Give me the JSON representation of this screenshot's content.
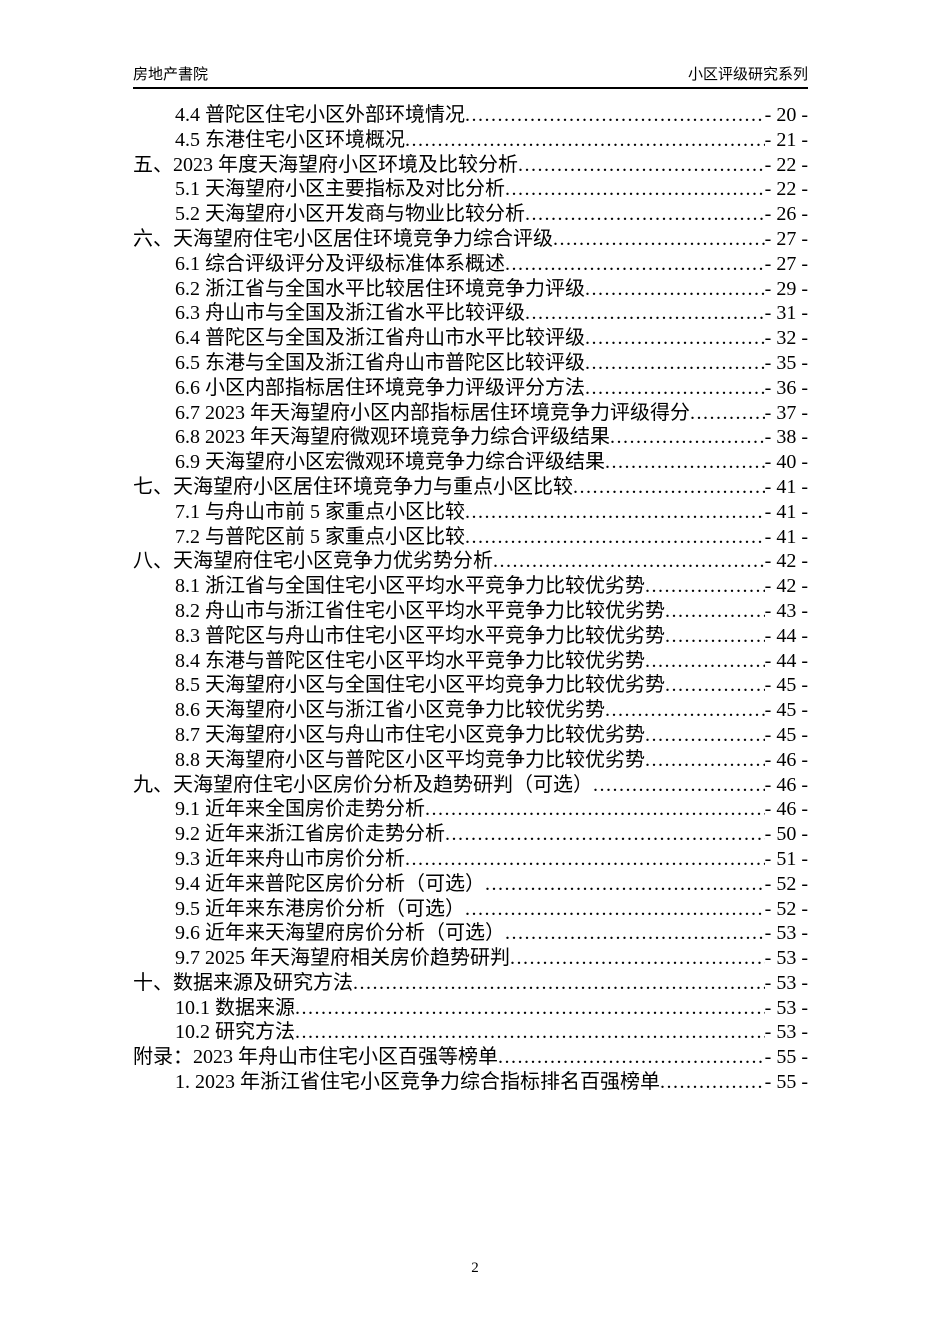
{
  "page": {
    "header": {
      "left_title": "房地产書院",
      "right_title": "小区评级研究系列"
    },
    "footer": {
      "page_number": "2"
    }
  },
  "toc": {
    "entries": [
      {
        "level": 2,
        "label": "4.4 普陀区住宅小区外部环境情况",
        "page": "- 20 -"
      },
      {
        "level": 2,
        "label": "4.5 东港住宅小区环境概况",
        "page": "- 21 -"
      },
      {
        "level": 1,
        "label": "五、2023 年度天海望府小区环境及比较分析",
        "page": "- 22 -"
      },
      {
        "level": 2,
        "label": "5.1 天海望府小区主要指标及对比分析",
        "page": "- 22 -"
      },
      {
        "level": 2,
        "label": "5.2 天海望府小区开发商与物业比较分析",
        "page": "- 26 -"
      },
      {
        "level": 1,
        "label": "六、天海望府住宅小区居住环境竞争力综合评级",
        "page": "- 27 -"
      },
      {
        "level": 2,
        "label": "6.1 综合评级评分及评级标准体系概述",
        "page": "- 27 -"
      },
      {
        "level": 2,
        "label": "6.2 浙江省与全国水平比较居住环境竞争力评级",
        "page": "- 29 -"
      },
      {
        "level": 2,
        "label": "6.3 舟山市与全国及浙江省水平比较评级",
        "page": "- 31 -"
      },
      {
        "level": 2,
        "label": "6.4 普陀区与全国及浙江省舟山市水平比较评级",
        "page": "- 32 -"
      },
      {
        "level": 2,
        "label": "6.5 东港与全国及浙江省舟山市普陀区比较评级",
        "page": "- 35 -"
      },
      {
        "level": 2,
        "label": "6.6 小区内部指标居住环境竞争力评级评分方法",
        "page": "- 36 -"
      },
      {
        "level": 2,
        "label": "6.7 2023 年天海望府小区内部指标居住环境竞争力评级得分",
        "page": "- 37 -"
      },
      {
        "level": 2,
        "label": "6.8 2023 年天海望府微观环境竞争力综合评级结果",
        "page": "- 38 -"
      },
      {
        "level": 2,
        "label": "6.9 天海望府小区宏微观环境竞争力综合评级结果",
        "page": "- 40 -"
      },
      {
        "level": 1,
        "label": "七、天海望府小区居住环境竞争力与重点小区比较",
        "page": "- 41 -"
      },
      {
        "level": 2,
        "label": "7.1 与舟山市前 5 家重点小区比较",
        "page": "- 41 -"
      },
      {
        "level": 2,
        "label": "7.2 与普陀区前 5 家重点小区比较",
        "page": "- 41 -"
      },
      {
        "level": 1,
        "label": "八、天海望府住宅小区竞争力优劣势分析",
        "page": "- 42 -"
      },
      {
        "level": 2,
        "label": "8.1 浙江省与全国住宅小区平均水平竞争力比较优劣势",
        "page": "- 42 -"
      },
      {
        "level": 2,
        "label": "8.2 舟山市与浙江省住宅小区平均水平竞争力比较优劣势",
        "page": "- 43 -"
      },
      {
        "level": 2,
        "label": "8.3 普陀区与舟山市住宅小区平均水平竞争力比较优劣势",
        "page": "- 44 -"
      },
      {
        "level": 2,
        "label": "8.4 东港与普陀区住宅小区平均水平竞争力比较优劣势",
        "page": "- 44 -"
      },
      {
        "level": 2,
        "label": "8.5 天海望府小区与全国住宅小区平均竞争力比较优劣势",
        "page": "- 45 -"
      },
      {
        "level": 2,
        "label": "8.6 天海望府小区与浙江省小区竞争力比较优劣势",
        "page": "- 45 -"
      },
      {
        "level": 2,
        "label": "8.7 天海望府小区与舟山市住宅小区竞争力比较优劣势",
        "page": "- 45 -"
      },
      {
        "level": 2,
        "label": "8.8 天海望府小区与普陀区小区平均竞争力比较优劣势",
        "page": "- 46 -"
      },
      {
        "level": 1,
        "label": "九、天海望府住宅小区房价分析及趋势研判（可选）",
        "page": "- 46 -"
      },
      {
        "level": 2,
        "label": "9.1 近年来全国房价走势分析",
        "page": "- 46 -"
      },
      {
        "level": 2,
        "label": "9.2 近年来浙江省房价走势分析",
        "page": "- 50 -"
      },
      {
        "level": 2,
        "label": "9.3 近年来舟山市房价分析",
        "page": "- 51 -"
      },
      {
        "level": 2,
        "label": "9.4 近年来普陀区房价分析（可选）",
        "page": "- 52 -"
      },
      {
        "level": 2,
        "label": "9.5 近年来东港房价分析（可选）",
        "page": "- 52 -"
      },
      {
        "level": 2,
        "label": "9.6 近年来天海望府房价分析（可选）",
        "page": "- 53 -"
      },
      {
        "level": 2,
        "label": "9.7 2025 年天海望府相关房价趋势研判",
        "page": "- 53 -"
      },
      {
        "level": 1,
        "label": "十、数据来源及研究方法",
        "page": "- 53 -"
      },
      {
        "level": 2,
        "label": "10.1 数据来源",
        "page": "- 53 -"
      },
      {
        "level": 2,
        "label": "10.2 研究方法",
        "page": "- 53 -"
      },
      {
        "level": 1,
        "label": "附录：2023 年舟山市住宅小区百强等榜单",
        "page": "- 55 -"
      },
      {
        "level": 2,
        "label": "1. 2023 年浙江省住宅小区竞争力综合指标排名百强榜单",
        "page": "- 55 -"
      }
    ]
  }
}
